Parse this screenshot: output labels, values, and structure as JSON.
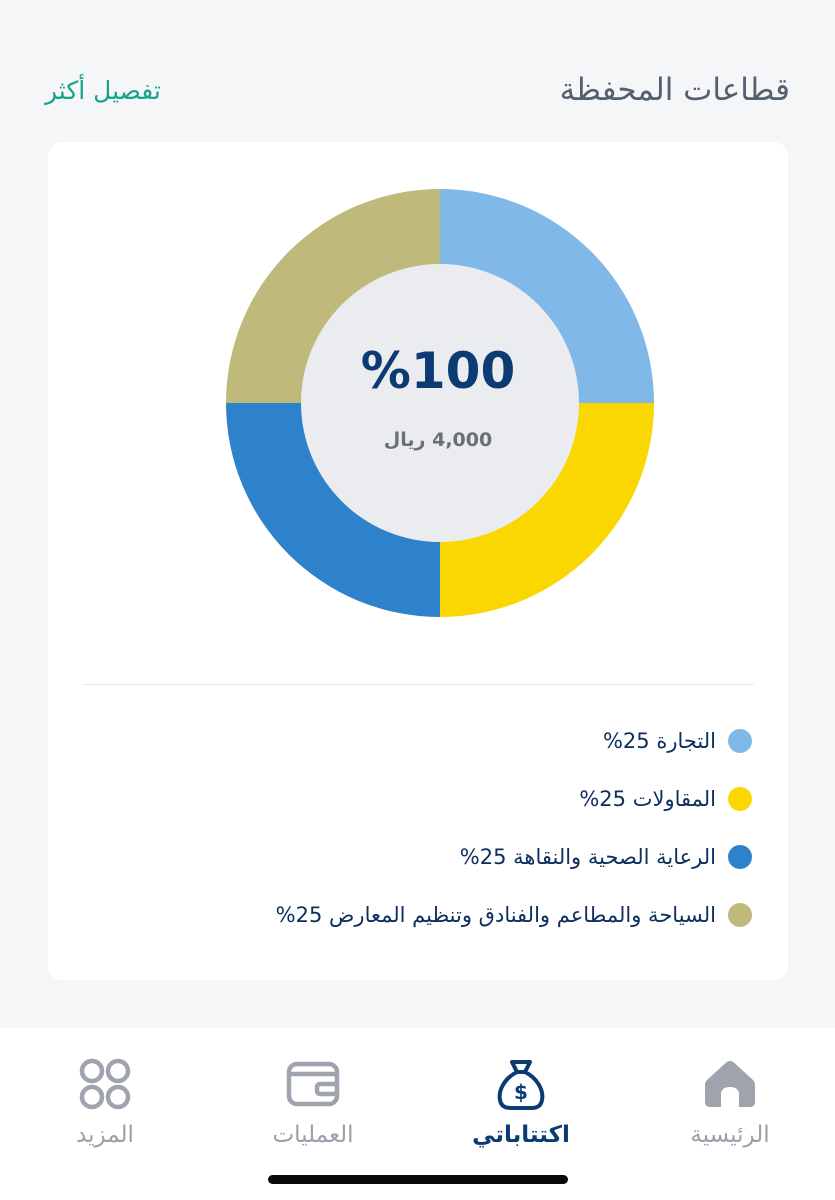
{
  "section": {
    "title": "قطاعات المحفظة",
    "more_link": "تفصيل أكثر"
  },
  "donut": {
    "center_percent": "%100",
    "center_amount": "4,000 ريال"
  },
  "chart_data": {
    "type": "pie",
    "categories": [
      "التجارة",
      "المقاولات",
      "الرعاية الصحية والنقاهة",
      "السياحة والمطاعم والفنادق وتنظيم المعارض"
    ],
    "values": [
      25,
      25,
      25,
      25
    ],
    "colors": [
      "#80b8e8",
      "#fad700",
      "#2e82cb",
      "#bfba7b"
    ],
    "center_label": "%100",
    "center_sublabel": "4,000 ريال"
  },
  "legend": [
    {
      "label": "التجارة 25%",
      "color": "#80b8e8"
    },
    {
      "label": "المقاولات 25%",
      "color": "#fad700"
    },
    {
      "label": "الرعاية الصحية والنقاهة 25%",
      "color": "#2e82cb"
    },
    {
      "label": "السياحة والمطاعم والفنادق وتنظيم المعارض 25%",
      "color": "#bfba7b"
    }
  ],
  "nav": {
    "home": "الرئيسية",
    "subscriptions": "اكتتاباتي",
    "operations": "العمليات",
    "more": "المزيد",
    "active": "subscriptions",
    "active_color": "#0c3b73",
    "inactive_color": "#9aa0a9"
  }
}
